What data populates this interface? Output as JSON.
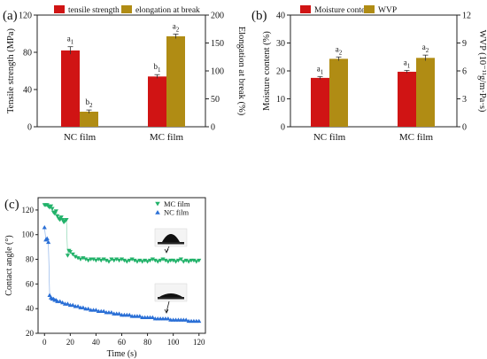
{
  "figure": {
    "panels": [
      "(a)",
      "(b)",
      "(c)"
    ]
  },
  "colors": {
    "red": "#d01414",
    "gold": "#b08c14",
    "green": "#22b26a",
    "blue": "#2a6fd6",
    "axis": "#222222"
  },
  "chart_data": [
    {
      "id": "a",
      "type": "bar",
      "categories": [
        "NC film",
        "MC film"
      ],
      "series": [
        {
          "name": "tensile strength",
          "axis": "left",
          "values": [
            82,
            54
          ],
          "errors": [
            4,
            2
          ],
          "labels": [
            "a1",
            "b1"
          ]
        },
        {
          "name": "elongation at break",
          "axis": "right",
          "values": [
            27,
            162
          ],
          "errors": [
            3,
            4
          ],
          "labels": [
            "b2",
            "a2"
          ]
        }
      ],
      "ylabel": "Tensile strength (MPa)",
      "ylabel_right": "Elongation at break (%)",
      "ylim": [
        0,
        120
      ],
      "ylim_right": [
        0,
        200
      ],
      "yticks": [
        0,
        40,
        80,
        120
      ],
      "yticks_right": [
        0,
        50,
        100,
        150,
        200
      ],
      "legend": "top"
    },
    {
      "id": "b",
      "type": "bar",
      "categories": [
        "NC film",
        "MC film"
      ],
      "series": [
        {
          "name": "Moisture content",
          "axis": "left",
          "values": [
            17.5,
            19.7
          ],
          "errors": [
            0.5,
            0.5
          ],
          "labels": [
            "a1",
            "a1"
          ]
        },
        {
          "name": "WVP",
          "axis": "right",
          "values": [
            7.3,
            7.4
          ],
          "errors": [
            0.2,
            0.3
          ],
          "labels": [
            "a2",
            "a2"
          ]
        }
      ],
      "ylabel": "Moisture content (%)",
      "ylabel_right": "WVP (10⁻¹¹g/m·Pa·s)",
      "ylim": [
        0,
        40
      ],
      "ylim_right": [
        0,
        12
      ],
      "yticks": [
        0,
        10,
        20,
        30,
        40
      ],
      "yticks_right": [
        0,
        3,
        6,
        9,
        12
      ],
      "legend": "top"
    },
    {
      "id": "c",
      "type": "scatter",
      "xlabel": "Time (s)",
      "ylabel": "Contact angle (°)",
      "xlim": [
        -5,
        125
      ],
      "ylim": [
        20,
        130
      ],
      "xticks": [
        0,
        20,
        40,
        60,
        80,
        100,
        120
      ],
      "yticks": [
        20,
        40,
        60,
        80,
        100,
        120
      ],
      "legend": "top-right",
      "series": [
        {
          "name": "MC film",
          "marker": "triangle-down",
          "points": [
            [
              0,
              124
            ],
            [
              1,
              124
            ],
            [
              2,
              124
            ],
            [
              3,
              123
            ],
            [
              4,
              122
            ],
            [
              5,
              123
            ],
            [
              6,
              121
            ],
            [
              7,
              118
            ],
            [
              8,
              117
            ],
            [
              9,
              119
            ],
            [
              10,
              115
            ],
            [
              11,
              113
            ],
            [
              12,
              112
            ],
            [
              13,
              114
            ],
            [
              14,
              112
            ],
            [
              15,
              110
            ],
            [
              16,
              111
            ],
            [
              17,
              112
            ],
            [
              18,
              83
            ],
            [
              19,
              87
            ],
            [
              20,
              86
            ],
            [
              22,
              84
            ],
            [
              24,
              82
            ],
            [
              26,
              81
            ],
            [
              28,
              80
            ],
            [
              30,
              81
            ],
            [
              32,
              80
            ],
            [
              34,
              79
            ],
            [
              36,
              80
            ],
            [
              38,
              80
            ],
            [
              40,
              79
            ],
            [
              42,
              80
            ],
            [
              44,
              79
            ],
            [
              46,
              80
            ],
            [
              48,
              79
            ],
            [
              50,
              78
            ],
            [
              52,
              80
            ],
            [
              54,
              79
            ],
            [
              56,
              80
            ],
            [
              58,
              79
            ],
            [
              60,
              80
            ],
            [
              62,
              79
            ],
            [
              64,
              78
            ],
            [
              66,
              79
            ],
            [
              68,
              80
            ],
            [
              70,
              79
            ],
            [
              72,
              78
            ],
            [
              74,
              79
            ],
            [
              76,
              78
            ],
            [
              78,
              79
            ],
            [
              80,
              78
            ],
            [
              82,
              79
            ],
            [
              84,
              80
            ],
            [
              86,
              79
            ],
            [
              88,
              78
            ],
            [
              90,
              79
            ],
            [
              92,
              80
            ],
            [
              94,
              79
            ],
            [
              96,
              78
            ],
            [
              98,
              79
            ],
            [
              100,
              79
            ],
            [
              102,
              78
            ],
            [
              104,
              79
            ],
            [
              106,
              80
            ],
            [
              108,
              78
            ],
            [
              110,
              79
            ],
            [
              112,
              78
            ],
            [
              114,
              79
            ],
            [
              116,
              79
            ],
            [
              118,
              78
            ],
            [
              120,
              79
            ]
          ]
        },
        {
          "name": "NC film",
          "marker": "triangle-up",
          "points": [
            [
              0,
              106
            ],
            [
              1,
              96
            ],
            [
              2,
              97
            ],
            [
              3,
              94
            ],
            [
              4,
              51
            ],
            [
              5,
              49
            ],
            [
              6,
              48
            ],
            [
              7,
              48
            ],
            [
              8,
              47
            ],
            [
              9,
              47
            ],
            [
              10,
              46
            ],
            [
              12,
              46
            ],
            [
              14,
              45
            ],
            [
              16,
              44
            ],
            [
              18,
              44
            ],
            [
              20,
              43
            ],
            [
              22,
              43
            ],
            [
              24,
              42
            ],
            [
              26,
              42
            ],
            [
              28,
              41
            ],
            [
              30,
              41
            ],
            [
              32,
              40
            ],
            [
              34,
              40
            ],
            [
              36,
              39
            ],
            [
              38,
              39
            ],
            [
              40,
              39
            ],
            [
              42,
              38
            ],
            [
              44,
              38
            ],
            [
              46,
              38
            ],
            [
              48,
              37
            ],
            [
              50,
              37
            ],
            [
              52,
              37
            ],
            [
              54,
              36
            ],
            [
              56,
              36
            ],
            [
              58,
              36
            ],
            [
              60,
              35
            ],
            [
              62,
              35
            ],
            [
              64,
              35
            ],
            [
              66,
              35
            ],
            [
              68,
              34
            ],
            [
              70,
              34
            ],
            [
              72,
              34
            ],
            [
              74,
              34
            ],
            [
              76,
              33
            ],
            [
              78,
              33
            ],
            [
              80,
              33
            ],
            [
              82,
              33
            ],
            [
              84,
              33
            ],
            [
              86,
              32
            ],
            [
              88,
              32
            ],
            [
              90,
              32
            ],
            [
              92,
              32
            ],
            [
              94,
              32
            ],
            [
              96,
              32
            ],
            [
              98,
              31
            ],
            [
              100,
              31
            ],
            [
              102,
              31
            ],
            [
              104,
              31
            ],
            [
              106,
              31
            ],
            [
              108,
              31
            ],
            [
              110,
              31
            ],
            [
              112,
              30
            ],
            [
              114,
              30
            ],
            [
              116,
              30
            ],
            [
              118,
              30
            ],
            [
              120,
              30
            ]
          ]
        }
      ]
    }
  ]
}
